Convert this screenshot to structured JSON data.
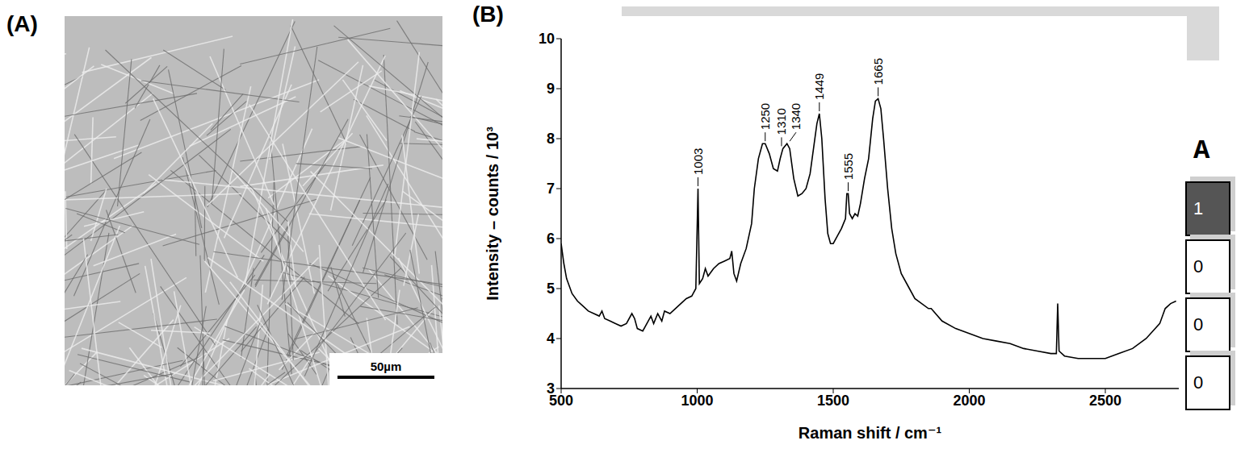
{
  "panel_a": {
    "label": "(A)",
    "scale_bar": "50µm"
  },
  "chart_data": {
    "type": "line",
    "panel_label": "(B)",
    "x_label": "Raman shift / cm⁻¹",
    "y_label": "Intensity – counts / 10³",
    "x": [
      500,
      510,
      520,
      540,
      560,
      580,
      600,
      620,
      640,
      650,
      660,
      680,
      700,
      720,
      740,
      760,
      770,
      780,
      800,
      820,
      830,
      840,
      855,
      870,
      880,
      900,
      920,
      940,
      960,
      980,
      995,
      1003,
      1008,
      1020,
      1030,
      1040,
      1060,
      1080,
      1100,
      1120,
      1127,
      1135,
      1145,
      1160,
      1180,
      1200,
      1210,
      1225,
      1240,
      1250,
      1265,
      1280,
      1295,
      1305,
      1315,
      1330,
      1340,
      1355,
      1370,
      1385,
      1400,
      1415,
      1430,
      1440,
      1449,
      1458,
      1470,
      1480,
      1490,
      1500,
      1515,
      1530,
      1545,
      1550,
      1555,
      1560,
      1570,
      1580,
      1590,
      1600,
      1615,
      1630,
      1645,
      1655,
      1665,
      1675,
      1685,
      1700,
      1715,
      1730,
      1750,
      1780,
      1800,
      1850,
      1860,
      1900,
      1950,
      2000,
      2050,
      2100,
      2150,
      2200,
      2250,
      2300,
      2320,
      2325,
      2330,
      2350,
      2400,
      2450,
      2500,
      2550,
      2600,
      2650,
      2700,
      2720,
      2740,
      2760
    ],
    "values": [
      5.9,
      5.5,
      5.2,
      4.9,
      4.75,
      4.65,
      4.55,
      4.5,
      4.45,
      4.55,
      4.4,
      4.35,
      4.3,
      4.25,
      4.3,
      4.5,
      4.4,
      4.2,
      4.15,
      4.35,
      4.45,
      4.3,
      4.5,
      4.35,
      4.55,
      4.5,
      4.6,
      4.7,
      4.8,
      4.85,
      5.0,
      7.0,
      5.1,
      5.2,
      5.4,
      5.25,
      5.4,
      5.5,
      5.55,
      5.6,
      5.75,
      5.3,
      5.15,
      5.5,
      5.8,
      6.3,
      7.0,
      7.6,
      7.9,
      7.9,
      7.7,
      7.4,
      7.35,
      7.6,
      7.8,
      7.9,
      7.8,
      7.2,
      6.85,
      6.9,
      7.0,
      7.3,
      7.9,
      8.3,
      8.5,
      8.0,
      6.8,
      6.1,
      5.9,
      5.9,
      6.05,
      6.2,
      6.4,
      6.9,
      6.9,
      6.5,
      6.4,
      6.5,
      6.45,
      6.7,
      7.2,
      7.6,
      8.4,
      8.75,
      8.8,
      8.6,
      8.0,
      7.0,
      6.2,
      5.7,
      5.3,
      5.0,
      4.8,
      4.6,
      4.6,
      4.35,
      4.2,
      4.1,
      4.0,
      3.95,
      3.9,
      3.8,
      3.75,
      3.7,
      3.7,
      4.7,
      3.75,
      3.65,
      3.6,
      3.6,
      3.6,
      3.7,
      3.8,
      4.0,
      4.3,
      4.6,
      4.7,
      4.75
    ],
    "color": "#000000",
    "xlim": [
      500,
      2770
    ],
    "xticks": [
      500,
      1000,
      1500,
      2000,
      2500
    ],
    "ylim": [
      3,
      10
    ],
    "yticks": [
      3,
      4,
      5,
      6,
      7,
      8,
      9,
      10
    ],
    "grid": false,
    "annotations": [
      {
        "x": 1003,
        "label": "1003"
      },
      {
        "x": 1250,
        "label": "1250"
      },
      {
        "x": 1310,
        "label": "1310"
      },
      {
        "x": 1340,
        "label": "1340"
      },
      {
        "x": 1449,
        "label": "1449"
      },
      {
        "x": 1555,
        "label": "1555"
      },
      {
        "x": 1665,
        "label": "1665"
      }
    ]
  },
  "side_table": {
    "header": "A",
    "cells": [
      1,
      0,
      0,
      0
    ]
  }
}
